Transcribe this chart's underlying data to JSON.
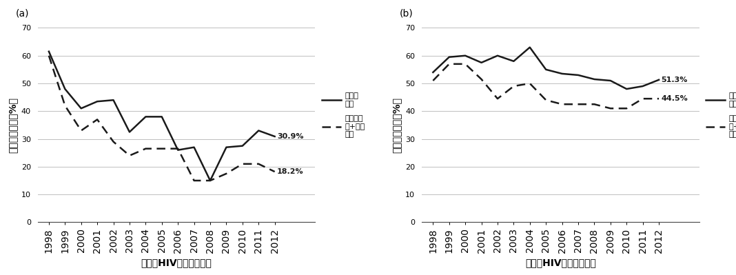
{
  "years": [
    1998,
    1999,
    2000,
    2001,
    2002,
    2003,
    2004,
    2005,
    2006,
    2007,
    2008,
    2009,
    2010,
    2011,
    2012
  ],
  "panel_a": {
    "label": "(a)",
    "solid": [
      61.5,
      48.0,
      41.0,
      43.5,
      44.0,
      32.5,
      38.0,
      38.0,
      26.0,
      27.0,
      15.0,
      27.0,
      27.5,
      33.0,
      30.9
    ],
    "dashed": [
      60.0,
      42.0,
      33.0,
      37.0,
      29.0,
      24.0,
      26.5,
      26.5,
      26.5,
      15.0,
      15.0,
      17.5,
      21.0,
      21.0,
      18.2
    ],
    "solid_label": "30.9%",
    "dashed_label": "18.2%"
  },
  "panel_b": {
    "label": "(b)",
    "solid": [
      54.0,
      59.5,
      60.0,
      57.5,
      60.0,
      58.0,
      63.0,
      55.0,
      53.5,
      53.0,
      51.5,
      51.0,
      48.0,
      49.0,
      51.3
    ],
    "dashed": [
      51.0,
      57.0,
      57.0,
      51.5,
      44.5,
      49.0,
      50.0,
      44.0,
      42.5,
      42.5,
      42.5,
      41.0,
      41.0,
      44.5,
      44.5
    ],
    "solid_label": "51.3%",
    "dashed_label": "44.5%"
  },
  "xlabel": "诊断为HIV的时间（年）",
  "ylabel": "晚发现者比例（%）",
  "legend_solid": "旧共识\n定义",
  "legend_dashed": "旧共识定\n义+临床\n分期",
  "ylim": [
    0,
    70
  ],
  "yticks": [
    0,
    10,
    20,
    30,
    40,
    50,
    60,
    70
  ],
  "line_color": "#1a1a1a",
  "background_color": "#ffffff",
  "grid_color": "#bebebe"
}
